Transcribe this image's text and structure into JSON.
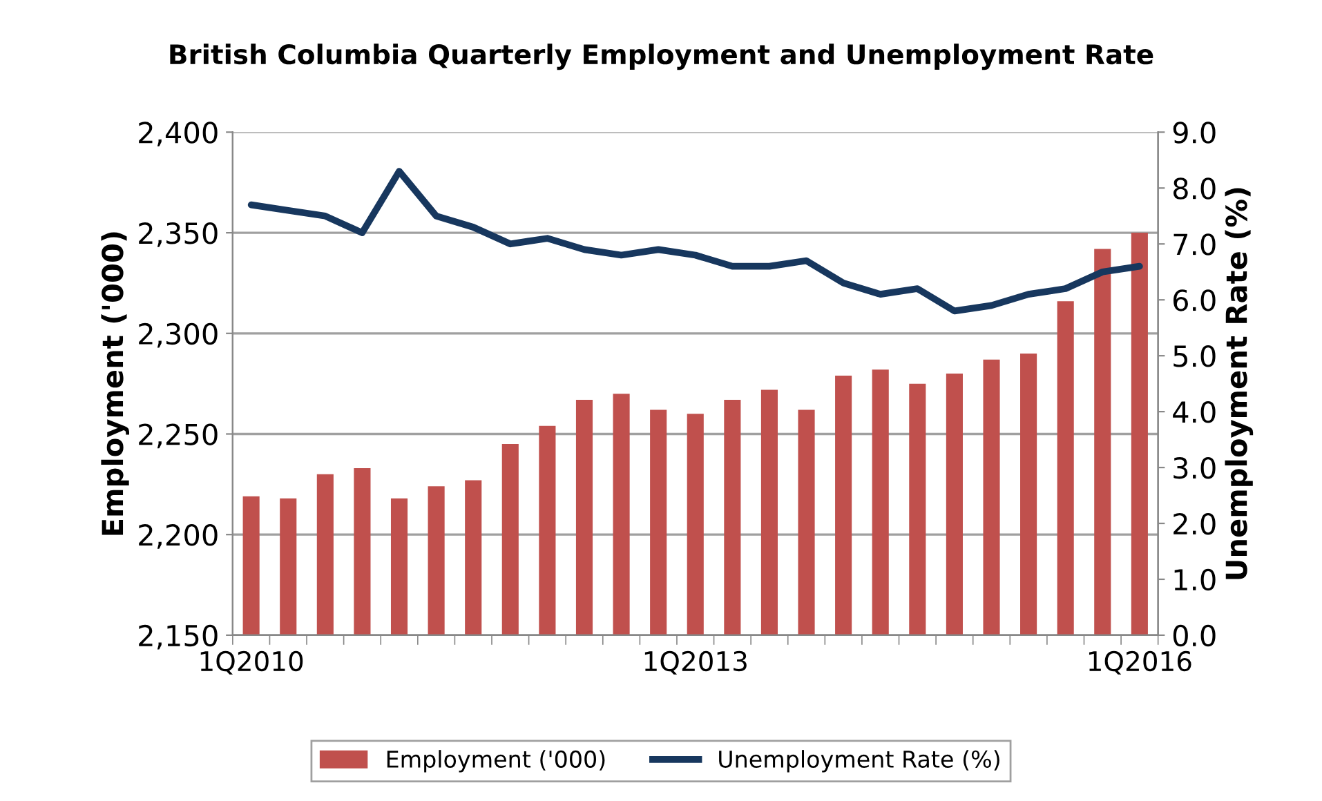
{
  "chart_data": {
    "type": "bar",
    "title": "British Columbia Quarterly Employment and Unemployment Rate",
    "ylabel": "Employment ('000)",
    "y2label": "Unemployment Rate (%)",
    "categories": [
      "1Q2010",
      null,
      null,
      null,
      null,
      null,
      null,
      null,
      null,
      null,
      null,
      null,
      "1Q2013",
      null,
      null,
      null,
      null,
      null,
      null,
      null,
      null,
      null,
      null,
      null,
      "1Q2016"
    ],
    "series": [
      {
        "name": "Employment ('000)",
        "color": "#c0504d",
        "values": [
          2219,
          2218,
          2230,
          2233,
          2218,
          2224,
          2227,
          2245,
          2254,
          2267,
          2270,
          2262,
          2260,
          2267,
          2272,
          2262,
          2279,
          2282,
          2275,
          2280,
          2287,
          2290,
          2316,
          2342,
          2350
        ]
      },
      {
        "name": "Unemployment Rate (%)",
        "type": "line",
        "axis": "y2",
        "color": "#17375e",
        "values": [
          7.7,
          7.6,
          7.5,
          7.2,
          8.3,
          7.5,
          7.3,
          7.0,
          7.1,
          6.9,
          6.8,
          6.9,
          6.8,
          6.6,
          6.6,
          6.7,
          6.3,
          6.1,
          6.2,
          5.8,
          5.9,
          6.1,
          6.2,
          6.5,
          6.6
        ]
      }
    ],
    "ylim": [
      2150,
      2400
    ],
    "yticks": [
      {
        "value": 2150,
        "label": "2,150"
      },
      {
        "value": 2200,
        "label": "2,200"
      },
      {
        "value": 2250,
        "label": "2,250"
      },
      {
        "value": 2300,
        "label": "2,300"
      },
      {
        "value": 2350,
        "label": "2,350"
      },
      {
        "value": 2400,
        "label": "2,400"
      }
    ],
    "y2lim": [
      0,
      9
    ],
    "y2ticks": [
      {
        "value": 0,
        "label": "0.0"
      },
      {
        "value": 1,
        "label": "1.0"
      },
      {
        "value": 2,
        "label": "2.0"
      },
      {
        "value": 3,
        "label": "3.0"
      },
      {
        "value": 4,
        "label": "4.0"
      },
      {
        "value": 5,
        "label": "5.0"
      },
      {
        "value": 6,
        "label": "6.0"
      },
      {
        "value": 7,
        "label": "7.0"
      },
      {
        "value": 8,
        "label": "8.0"
      },
      {
        "value": 9,
        "label": "9.0"
      }
    ],
    "grid": "y",
    "legend": "bottom",
    "marker": "none",
    "line_style": "solid"
  }
}
